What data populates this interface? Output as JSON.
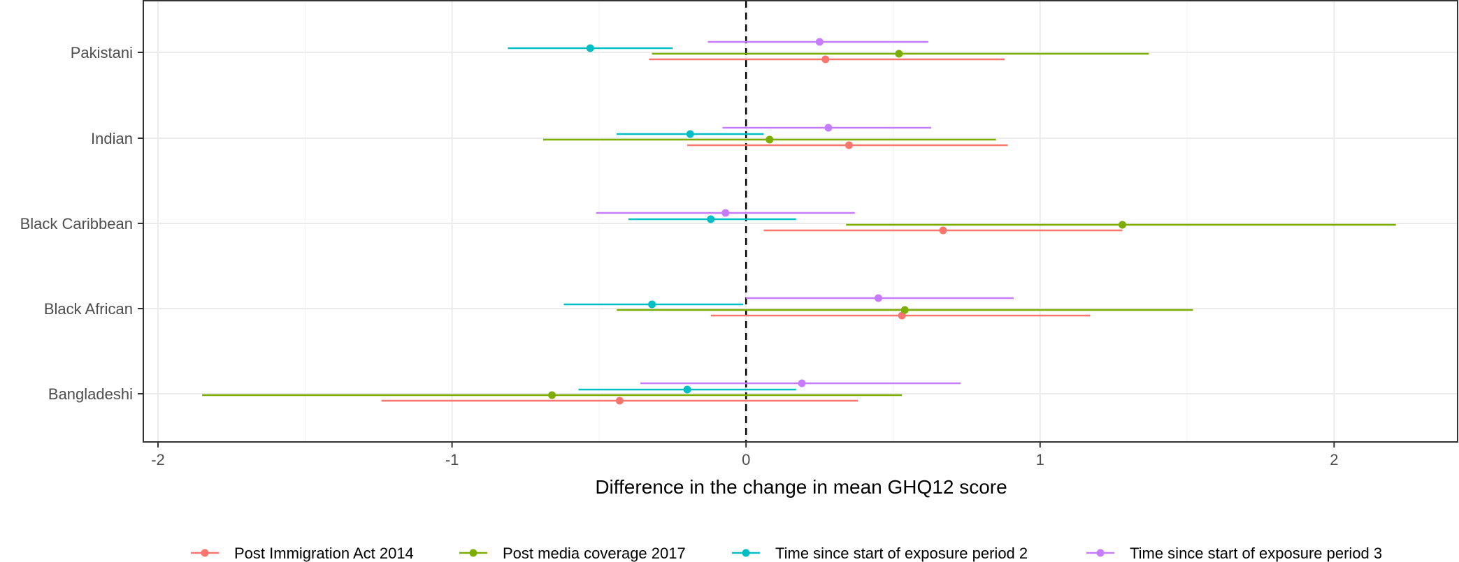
{
  "chart_data": {
    "type": "forest",
    "xlabel": "Difference in the change in mean GHQ12 score",
    "ylabel": "",
    "xlim": [
      -2.05,
      2.42
    ],
    "x_ticks": [
      -2,
      -1,
      0,
      1,
      2
    ],
    "x_tick_labels": [
      "-2",
      "-1",
      "0",
      "1",
      "2"
    ],
    "categories": [
      "Pakistani",
      "Indian",
      "Black Caribbean",
      "Black African",
      "Bangladeshi"
    ],
    "reference_line": 0,
    "grid": true,
    "legend_position": "bottom",
    "series": [
      {
        "name": "Post Immigration Act 2014",
        "color": "#F8766D",
        "points": [
          {
            "category": "Pakistani",
            "estimate": 0.27,
            "lower": -0.33,
            "upper": 0.88
          },
          {
            "category": "Indian",
            "estimate": 0.35,
            "lower": -0.2,
            "upper": 0.89
          },
          {
            "category": "Black Caribbean",
            "estimate": 0.67,
            "lower": 0.06,
            "upper": 1.28
          },
          {
            "category": "Black African",
            "estimate": 0.53,
            "lower": -0.12,
            "upper": 1.17
          },
          {
            "category": "Bangladeshi",
            "estimate": -0.43,
            "lower": -1.24,
            "upper": 0.38
          }
        ]
      },
      {
        "name": "Post media coverage 2017",
        "color": "#7CAE00",
        "points": [
          {
            "category": "Pakistani",
            "estimate": 0.52,
            "lower": -0.32,
            "upper": 1.37
          },
          {
            "category": "Indian",
            "estimate": 0.08,
            "lower": -0.69,
            "upper": 0.85
          },
          {
            "category": "Black Caribbean",
            "estimate": 1.28,
            "lower": 0.34,
            "upper": 2.21
          },
          {
            "category": "Black African",
            "estimate": 0.54,
            "lower": -0.44,
            "upper": 1.52
          },
          {
            "category": "Bangladeshi",
            "estimate": -0.66,
            "lower": -1.85,
            "upper": 0.53
          }
        ]
      },
      {
        "name": "Time since start of exposure period 2",
        "color": "#00BFC4",
        "points": [
          {
            "category": "Pakistani",
            "estimate": -0.53,
            "lower": -0.81,
            "upper": -0.25
          },
          {
            "category": "Indian",
            "estimate": -0.19,
            "lower": -0.44,
            "upper": 0.06
          },
          {
            "category": "Black Caribbean",
            "estimate": -0.12,
            "lower": -0.4,
            "upper": 0.17
          },
          {
            "category": "Black African",
            "estimate": -0.32,
            "lower": -0.62,
            "upper": -0.01
          },
          {
            "category": "Bangladeshi",
            "estimate": -0.2,
            "lower": -0.57,
            "upper": 0.17
          }
        ]
      },
      {
        "name": "Time since start of exposure period 3",
        "color": "#C77CFF",
        "points": [
          {
            "category": "Pakistani",
            "estimate": 0.25,
            "lower": -0.13,
            "upper": 0.62
          },
          {
            "category": "Indian",
            "estimate": 0.28,
            "lower": -0.08,
            "upper": 0.63
          },
          {
            "category": "Black Caribbean",
            "estimate": -0.07,
            "lower": -0.51,
            "upper": 0.37
          },
          {
            "category": "Black African",
            "estimate": 0.45,
            "lower": 0.0,
            "upper": 0.91
          },
          {
            "category": "Bangladeshi",
            "estimate": 0.19,
            "lower": -0.36,
            "upper": 0.73
          }
        ]
      }
    ]
  }
}
